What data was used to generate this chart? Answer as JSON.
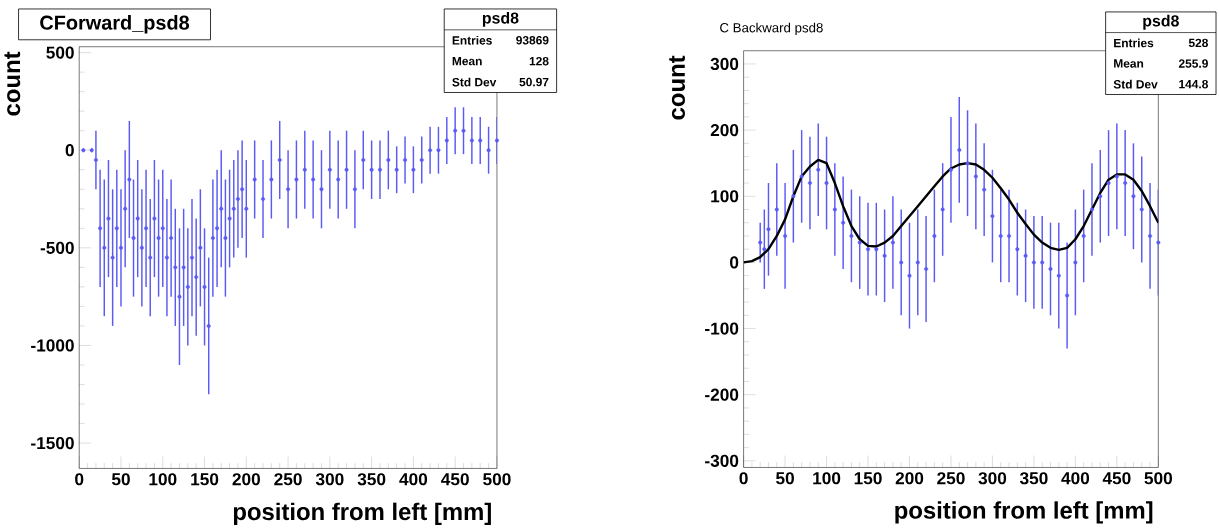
{
  "chart_data": [
    {
      "type": "scatter",
      "title": "CForward_psd8",
      "xlabel": "position from left [mm]",
      "ylabel": "count",
      "xlim": [
        0,
        500
      ],
      "ylim": [
        -1630,
        530
      ],
      "xticks": [
        0,
        50,
        100,
        150,
        200,
        250,
        300,
        350,
        400,
        450,
        500
      ],
      "yticks": [
        -1500,
        -1000,
        -500,
        0,
        500
      ],
      "annotations": [
        "psd8",
        "Entries",
        "93869",
        "Mean",
        "128",
        "Std Dev",
        "50.97"
      ],
      "series": [
        {
          "color": "#5a5af5",
          "x": [
            5,
            15,
            20,
            25,
            30,
            35,
            40,
            45,
            50,
            55,
            60,
            65,
            70,
            75,
            80,
            85,
            90,
            95,
            100,
            105,
            110,
            115,
            120,
            125,
            130,
            135,
            140,
            145,
            150,
            155,
            160,
            165,
            170,
            175,
            180,
            185,
            190,
            195,
            200,
            210,
            220,
            230,
            240,
            250,
            260,
            270,
            280,
            290,
            300,
            310,
            320,
            330,
            340,
            350,
            360,
            370,
            380,
            390,
            400,
            410,
            420,
            430,
            440,
            450,
            460,
            470,
            480,
            490,
            500
          ],
          "values": [
            0,
            0,
            -50,
            -400,
            -500,
            -350,
            -550,
            -400,
            -500,
            -300,
            -150,
            -450,
            -350,
            -500,
            -400,
            -550,
            -350,
            -450,
            -400,
            -550,
            -450,
            -600,
            -750,
            -600,
            -700,
            -550,
            -650,
            -500,
            -700,
            -900,
            -450,
            -400,
            -300,
            -450,
            -350,
            -300,
            -250,
            -200,
            -300,
            -150,
            -250,
            -150,
            -50,
            -200,
            -150,
            -100,
            -150,
            -200,
            -100,
            -150,
            -100,
            -200,
            -50,
            -100,
            -100,
            -50,
            -100,
            -50,
            -100,
            -50,
            0,
            0,
            50,
            100,
            100,
            50,
            50,
            0,
            50
          ],
          "errors": [
            10,
            10,
            150,
            300,
            350,
            300,
            350,
            300,
            300,
            300,
            300,
            300,
            300,
            300,
            300,
            300,
            300,
            300,
            300,
            300,
            300,
            300,
            350,
            300,
            300,
            300,
            300,
            300,
            300,
            350,
            300,
            300,
            300,
            300,
            250,
            250,
            250,
            250,
            250,
            200,
            200,
            200,
            200,
            200,
            200,
            200,
            200,
            200,
            200,
            200,
            200,
            200,
            150,
            150,
            150,
            150,
            120,
            120,
            120,
            120,
            120,
            120,
            120,
            120,
            120,
            120,
            120,
            120,
            120
          ]
        }
      ]
    },
    {
      "type": "scatter",
      "title": "C Backward psd8",
      "xlabel": "position from left [mm]",
      "ylabel": "count",
      "xlim": [
        0,
        500
      ],
      "ylim": [
        -310,
        320
      ],
      "xticks": [
        0,
        50,
        100,
        150,
        200,
        250,
        300,
        350,
        400,
        450,
        500
      ],
      "yticks": [
        -300,
        -200,
        -100,
        0,
        100,
        200,
        300
      ],
      "annotations": [
        "psd8",
        "Entries",
        "528",
        "Mean",
        "255.9",
        "Std Dev",
        "144.8"
      ],
      "series": [
        {
          "color": "#5a5af5",
          "x": [
            20,
            25,
            30,
            40,
            50,
            60,
            70,
            80,
            90,
            100,
            110,
            120,
            130,
            140,
            150,
            160,
            170,
            180,
            190,
            200,
            210,
            220,
            230,
            240,
            250,
            260,
            270,
            280,
            290,
            300,
            310,
            320,
            330,
            340,
            350,
            360,
            370,
            380,
            390,
            400,
            410,
            420,
            430,
            440,
            450,
            460,
            470,
            480,
            490,
            500
          ],
          "values": [
            30,
            20,
            50,
            80,
            40,
            100,
            130,
            120,
            140,
            120,
            80,
            60,
            40,
            30,
            20,
            20,
            10,
            30,
            0,
            -20,
            0,
            -10,
            40,
            80,
            140,
            170,
            150,
            130,
            110,
            70,
            40,
            40,
            20,
            10,
            0,
            0,
            -10,
            -20,
            -50,
            0,
            40,
            80,
            100,
            120,
            130,
            120,
            100,
            80,
            40,
            30
          ],
          "errors": [
            30,
            60,
            70,
            70,
            80,
            70,
            70,
            70,
            70,
            70,
            70,
            70,
            70,
            70,
            70,
            70,
            70,
            70,
            80,
            80,
            80,
            80,
            70,
            70,
            80,
            80,
            80,
            80,
            70,
            70,
            70,
            70,
            70,
            70,
            70,
            70,
            70,
            80,
            80,
            80,
            70,
            70,
            70,
            80,
            80,
            80,
            80,
            80,
            80,
            80
          ]
        },
        {
          "type": "line",
          "color": "#000000",
          "x": [
            0,
            10,
            20,
            30,
            40,
            50,
            60,
            70,
            80,
            90,
            100,
            110,
            120,
            130,
            140,
            150,
            160,
            170,
            180,
            190,
            200,
            210,
            220,
            230,
            240,
            250,
            260,
            270,
            280,
            290,
            300,
            310,
            320,
            330,
            340,
            350,
            360,
            370,
            380,
            390,
            400,
            410,
            420,
            430,
            440,
            450,
            460,
            470,
            480,
            490,
            500
          ],
          "values": [
            0,
            2,
            8,
            20,
            40,
            65,
            100,
            130,
            145,
            155,
            150,
            120,
            85,
            55,
            35,
            25,
            24,
            30,
            40,
            55,
            70,
            85,
            100,
            115,
            130,
            142,
            148,
            150,
            148,
            140,
            128,
            112,
            95,
            75,
            58,
            42,
            30,
            22,
            19,
            22,
            35,
            55,
            80,
            105,
            125,
            133,
            133,
            125,
            108,
            85,
            60
          ]
        }
      ]
    }
  ]
}
